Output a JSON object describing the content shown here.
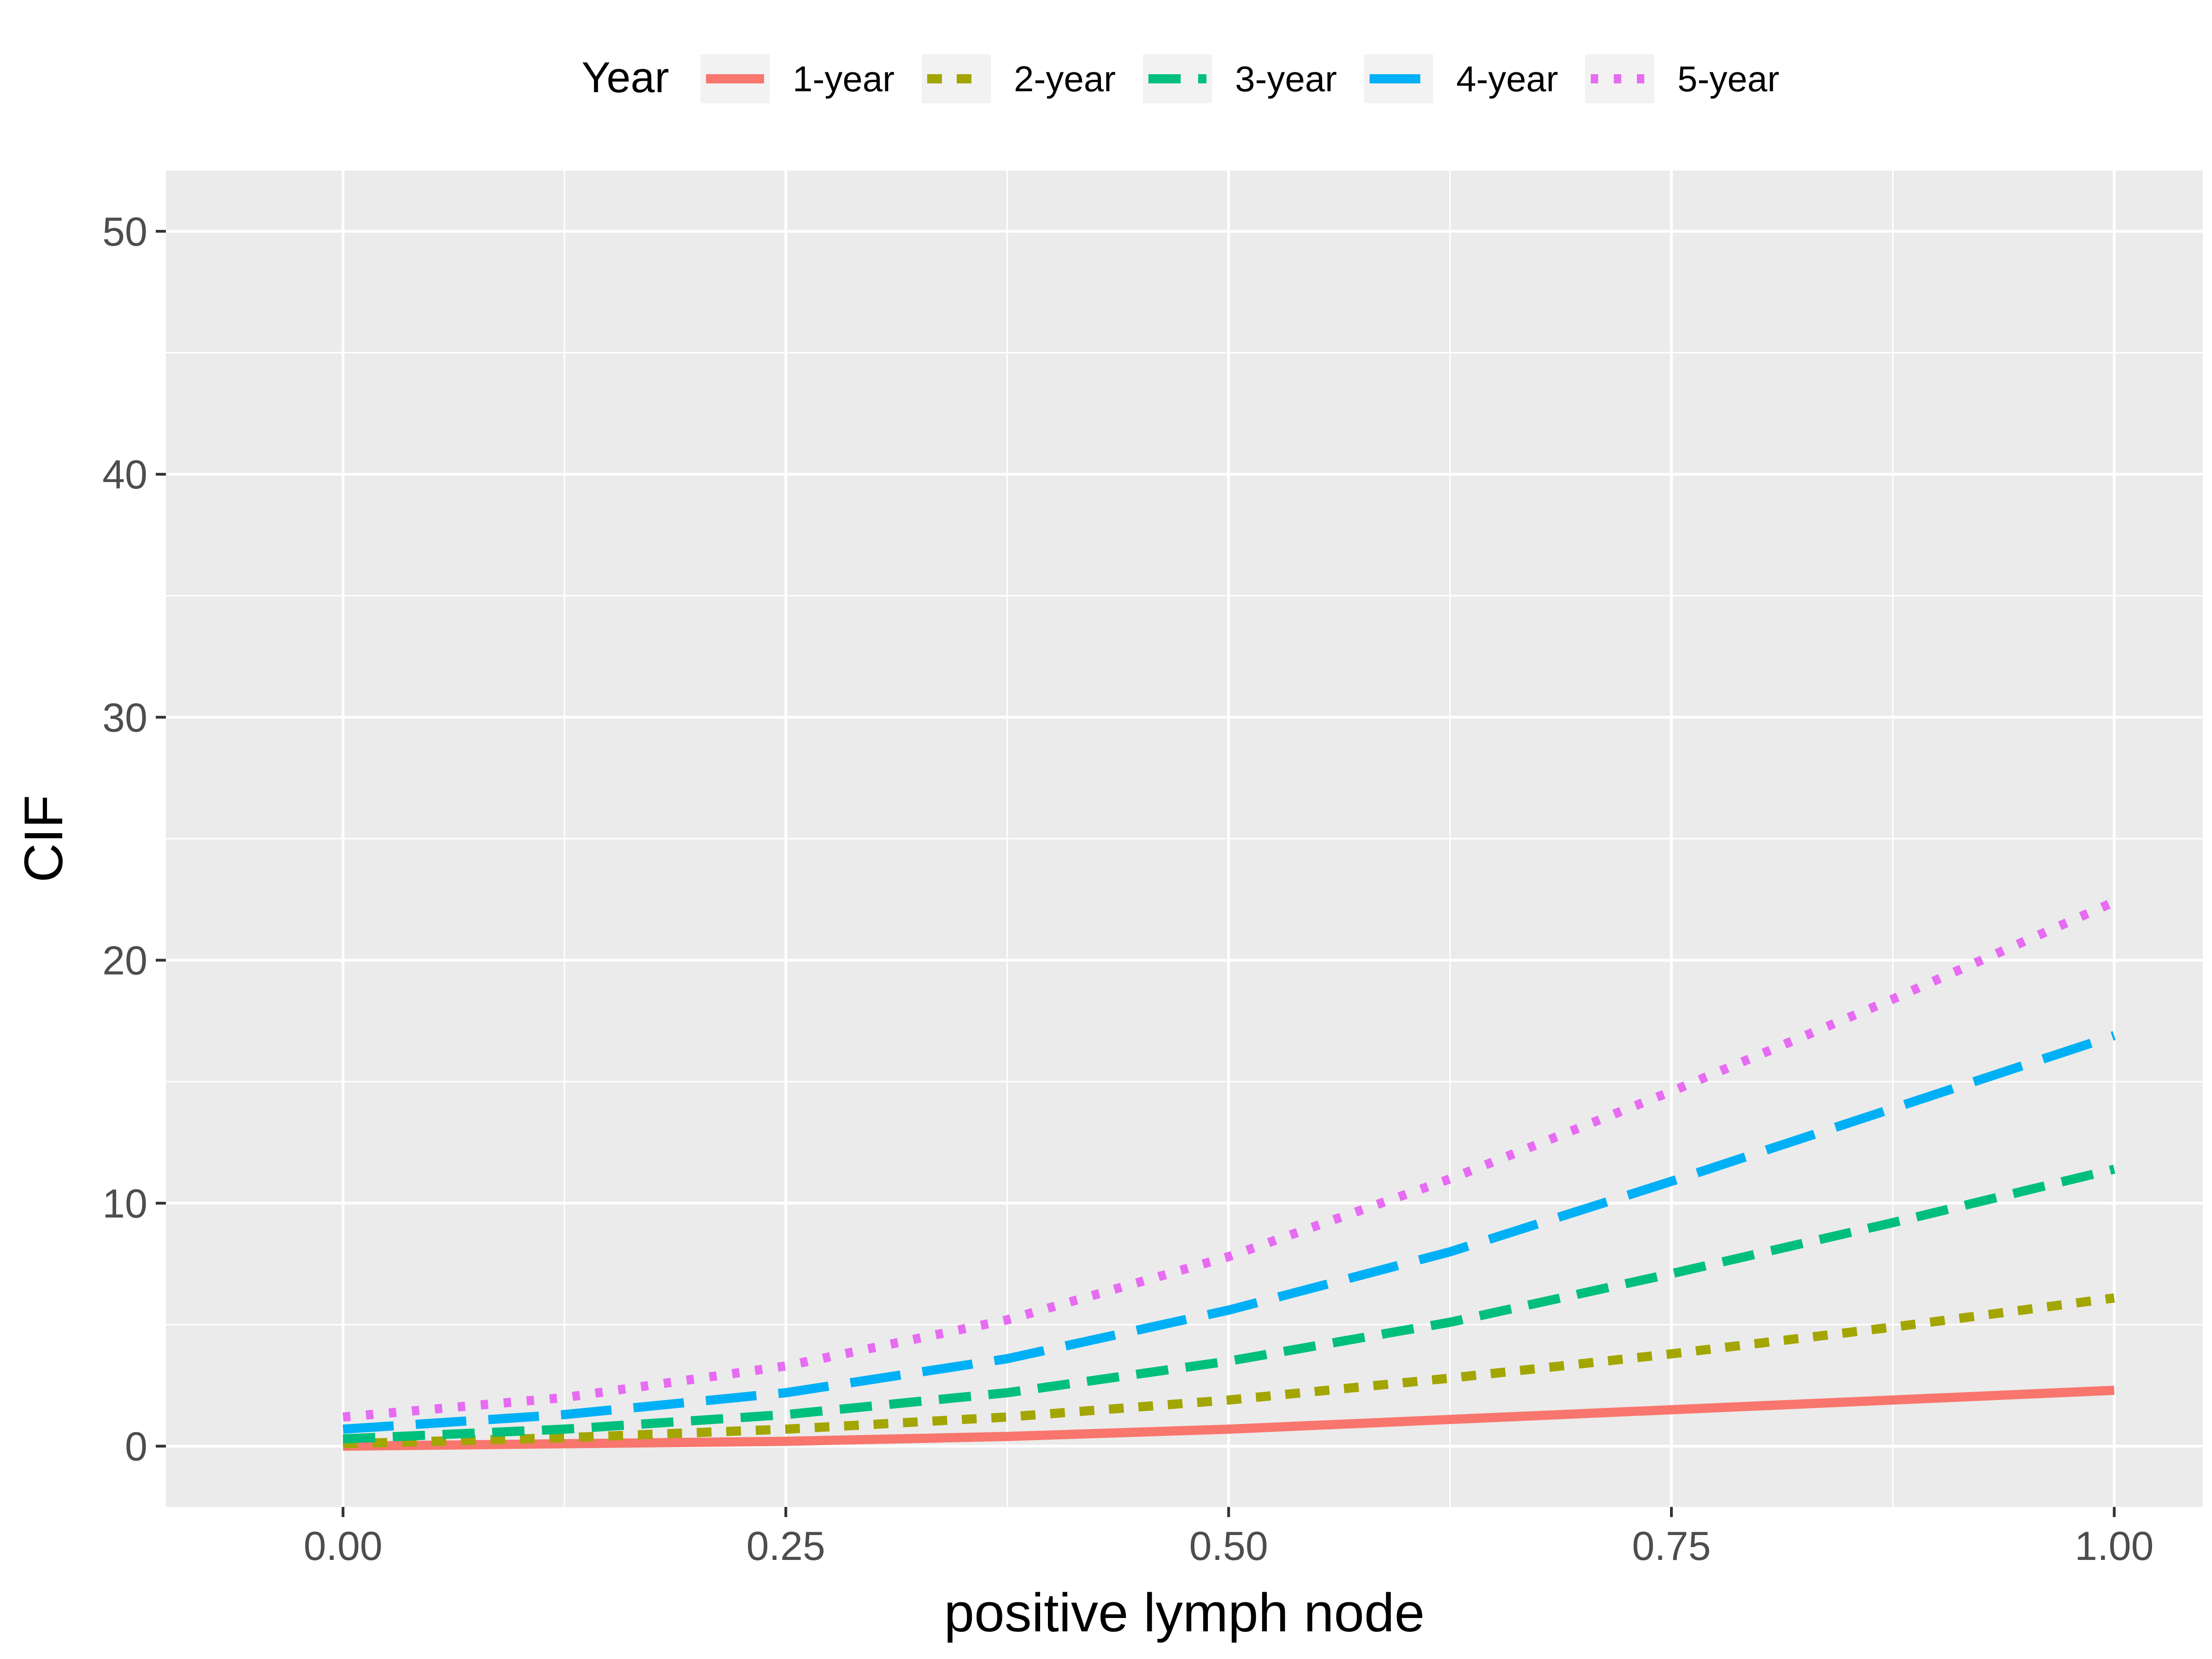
{
  "chart_data": {
    "type": "line",
    "xlabel": "positive lymph node",
    "ylabel": "CIF",
    "xlim": [
      -0.1,
      1.05
    ],
    "ylim": [
      -2.5,
      52.5
    ],
    "x_ticks": [
      0.0,
      0.25,
      0.5,
      0.75,
      1.0
    ],
    "x_tick_labels": [
      "0.00",
      "0.25",
      "0.50",
      "0.75",
      "1.00"
    ],
    "y_ticks": [
      0,
      10,
      20,
      30,
      40,
      50
    ],
    "y_tick_labels": [
      "0",
      "10",
      "20",
      "30",
      "40",
      "50"
    ],
    "grid": true,
    "legend": {
      "title": "Year",
      "position": "top"
    },
    "x": [
      0.0,
      0.125,
      0.25,
      0.375,
      0.5,
      0.625,
      0.75,
      0.875,
      1.0
    ],
    "series": [
      {
        "name": "1-year",
        "color": "#F8766D",
        "dash": "solid",
        "values": [
          0.0,
          0.1,
          0.2,
          0.4,
          0.7,
          1.1,
          1.5,
          1.9,
          2.3
        ]
      },
      {
        "name": "2-year",
        "color": "#A3A500",
        "dash": "short-dash",
        "values": [
          0.1,
          0.35,
          0.7,
          1.2,
          1.9,
          2.8,
          3.8,
          4.9,
          6.1
        ]
      },
      {
        "name": "3-year",
        "color": "#00BF7D",
        "dash": "dash",
        "values": [
          0.3,
          0.7,
          1.3,
          2.2,
          3.5,
          5.1,
          7.1,
          9.2,
          11.4
        ]
      },
      {
        "name": "4-year",
        "color": "#00B0F6",
        "dash": "long-dash",
        "values": [
          0.7,
          1.3,
          2.2,
          3.6,
          5.6,
          8.0,
          10.9,
          13.9,
          16.9
        ]
      },
      {
        "name": "5-year",
        "color": "#E76BF3",
        "dash": "dotted",
        "values": [
          1.2,
          2.0,
          3.3,
          5.2,
          7.8,
          11.0,
          14.6,
          18.4,
          22.4
        ]
      }
    ]
  }
}
